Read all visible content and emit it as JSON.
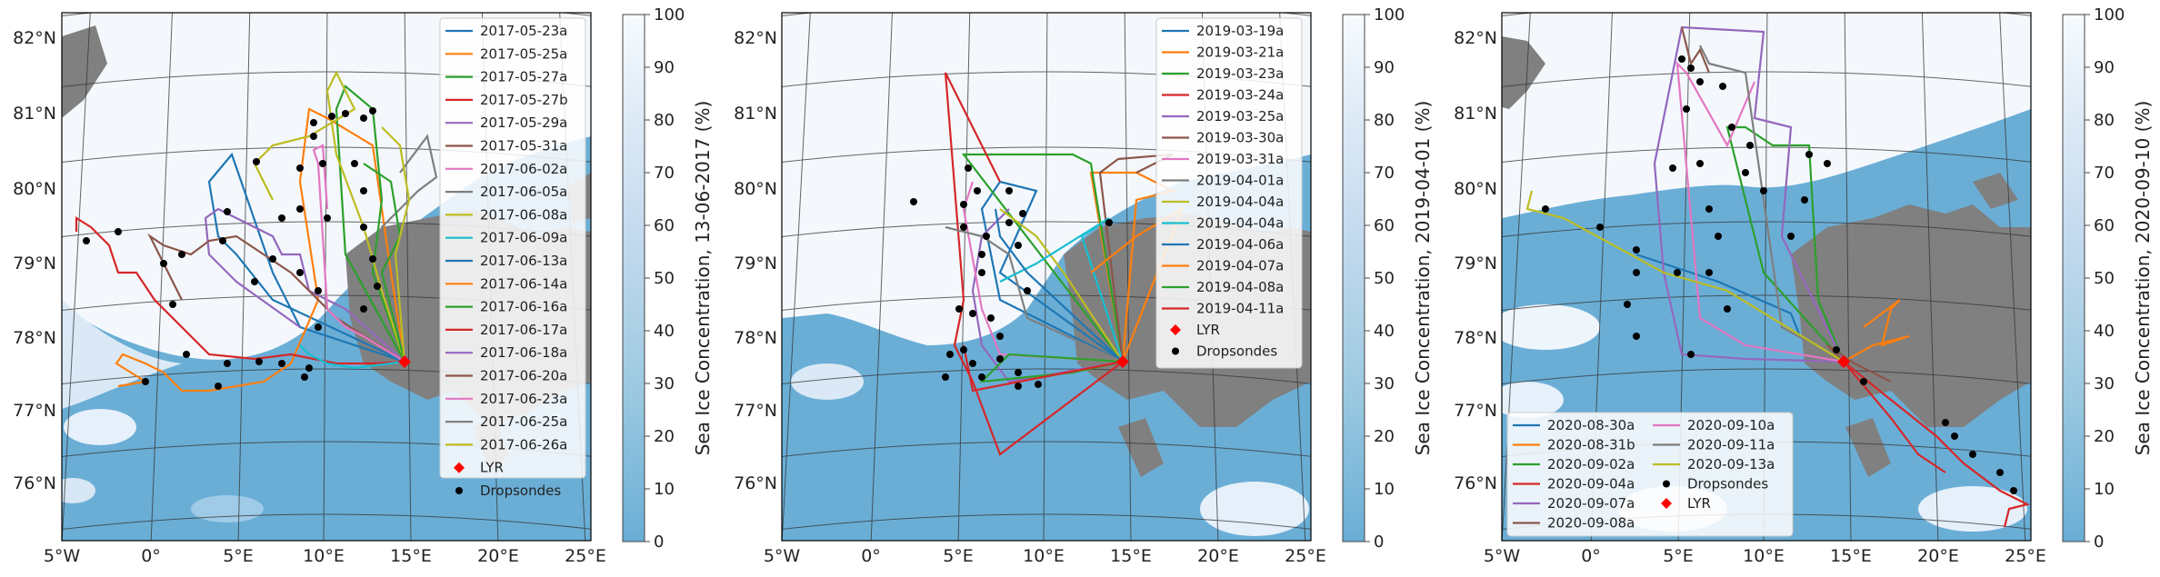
{
  "panels": [
    {
      "id": "p1",
      "lat_labels": [
        "82°N",
        "81°N",
        "80°N",
        "79°N",
        "78°N",
        "77°N",
        "76°N"
      ],
      "lon_labels": [
        "5°W",
        "0°",
        "5°E",
        "10°E",
        "15°E",
        "20°E",
        "25°E"
      ],
      "colorbar": {
        "label": "Sea Ice Concentration, 13-06-2017 (%)",
        "ticks": [
          "0",
          "10",
          "20",
          "30",
          "40",
          "50",
          "60",
          "70",
          "80",
          "90",
          "100"
        ]
      },
      "legend": {
        "flights": [
          {
            "label": "2017-05-23a",
            "color": "#1f77b4"
          },
          {
            "label": "2017-05-25a",
            "color": "#ff7f0e"
          },
          {
            "label": "2017-05-27a",
            "color": "#2ca02c"
          },
          {
            "label": "2017-05-27b",
            "color": "#d62728"
          },
          {
            "label": "2017-05-29a",
            "color": "#9467bd"
          },
          {
            "label": "2017-05-31a",
            "color": "#8c564b"
          },
          {
            "label": "2017-06-02a",
            "color": "#e377c2"
          },
          {
            "label": "2017-06-05a",
            "color": "#7f7f7f"
          },
          {
            "label": "2017-06-08a",
            "color": "#bcbd22"
          },
          {
            "label": "2017-06-09a",
            "color": "#17becf"
          },
          {
            "label": "2017-06-13a",
            "color": "#1f77b4"
          },
          {
            "label": "2017-06-14a",
            "color": "#ff7f0e"
          },
          {
            "label": "2017-06-16a",
            "color": "#2ca02c"
          },
          {
            "label": "2017-06-17a",
            "color": "#d62728"
          },
          {
            "label": "2017-06-18a",
            "color": "#9467bd"
          },
          {
            "label": "2017-06-20a",
            "color": "#8c564b"
          },
          {
            "label": "2017-06-23a",
            "color": "#e377c2"
          },
          {
            "label": "2017-06-25a",
            "color": "#7f7f7f"
          },
          {
            "label": "2017-06-26a",
            "color": "#bcbd22"
          }
        ],
        "lyr": "LYR",
        "dropsondes": "Dropsondes"
      }
    },
    {
      "id": "p2",
      "lat_labels": [
        "82°N",
        "81°N",
        "80°N",
        "79°N",
        "78°N",
        "77°N",
        "76°N"
      ],
      "lon_labels": [
        "5°W",
        "0°",
        "5°E",
        "10°E",
        "15°E",
        "20°E",
        "25°E"
      ],
      "colorbar": {
        "label": "Sea Ice Concentration, 2019-04-01 (%)",
        "ticks": [
          "0",
          "10",
          "20",
          "30",
          "40",
          "50",
          "60",
          "70",
          "80",
          "90",
          "100"
        ]
      },
      "legend": {
        "flights": [
          {
            "label": "2019-03-19a",
            "color": "#1f77b4"
          },
          {
            "label": "2019-03-21a",
            "color": "#ff7f0e"
          },
          {
            "label": "2019-03-23a",
            "color": "#2ca02c"
          },
          {
            "label": "2019-03-24a",
            "color": "#d62728"
          },
          {
            "label": "2019-03-25a",
            "color": "#9467bd"
          },
          {
            "label": "2019-03-30a",
            "color": "#8c564b"
          },
          {
            "label": "2019-03-31a",
            "color": "#e377c2"
          },
          {
            "label": "2019-04-01a",
            "color": "#7f7f7f"
          },
          {
            "label": "2019-04-04a",
            "color": "#bcbd22"
          },
          {
            "label": "2019-04-04a",
            "color": "#17becf"
          },
          {
            "label": "2019-04-06a",
            "color": "#1f77b4"
          },
          {
            "label": "2019-04-07a",
            "color": "#ff7f0e"
          },
          {
            "label": "2019-04-08a",
            "color": "#2ca02c"
          },
          {
            "label": "2019-04-11a",
            "color": "#d62728"
          }
        ],
        "lyr": "LYR",
        "dropsondes": "Dropsondes"
      }
    },
    {
      "id": "p3",
      "lat_labels": [
        "82°N",
        "81°N",
        "80°N",
        "79°N",
        "78°N",
        "77°N",
        "76°N"
      ],
      "lon_labels": [
        "5°W",
        "0°",
        "5°E",
        "10°E",
        "15°E",
        "20°E",
        "25°E"
      ],
      "colorbar": {
        "label": "Sea Ice Concentration, 2020-09-10 (%)",
        "ticks": [
          "0",
          "10",
          "20",
          "30",
          "40",
          "50",
          "60",
          "70",
          "80",
          "90",
          "100"
        ]
      },
      "legend": {
        "col1": [
          {
            "label": "2020-08-30a",
            "color": "#1f77b4"
          },
          {
            "label": "2020-08-31b",
            "color": "#ff7f0e"
          },
          {
            "label": "2020-09-02a",
            "color": "#2ca02c"
          },
          {
            "label": "2020-09-04a",
            "color": "#d62728"
          },
          {
            "label": "2020-09-07a",
            "color": "#9467bd"
          },
          {
            "label": "2020-09-08a",
            "color": "#8c564b"
          }
        ],
        "col2": [
          {
            "label": "2020-09-10a",
            "color": "#e377c2"
          },
          {
            "label": "2020-09-11a",
            "color": "#7f7f7f"
          },
          {
            "label": "2020-09-13a",
            "color": "#bcbd22"
          }
        ],
        "dropsondes": "Dropsondes",
        "lyr": "LYR"
      }
    }
  ],
  "colors": {
    "ocean": "#6aaed6",
    "ice": "#f7fbff",
    "land": "#808080",
    "lyr_marker": "#ff0000",
    "dropsonde_marker": "#000000"
  }
}
